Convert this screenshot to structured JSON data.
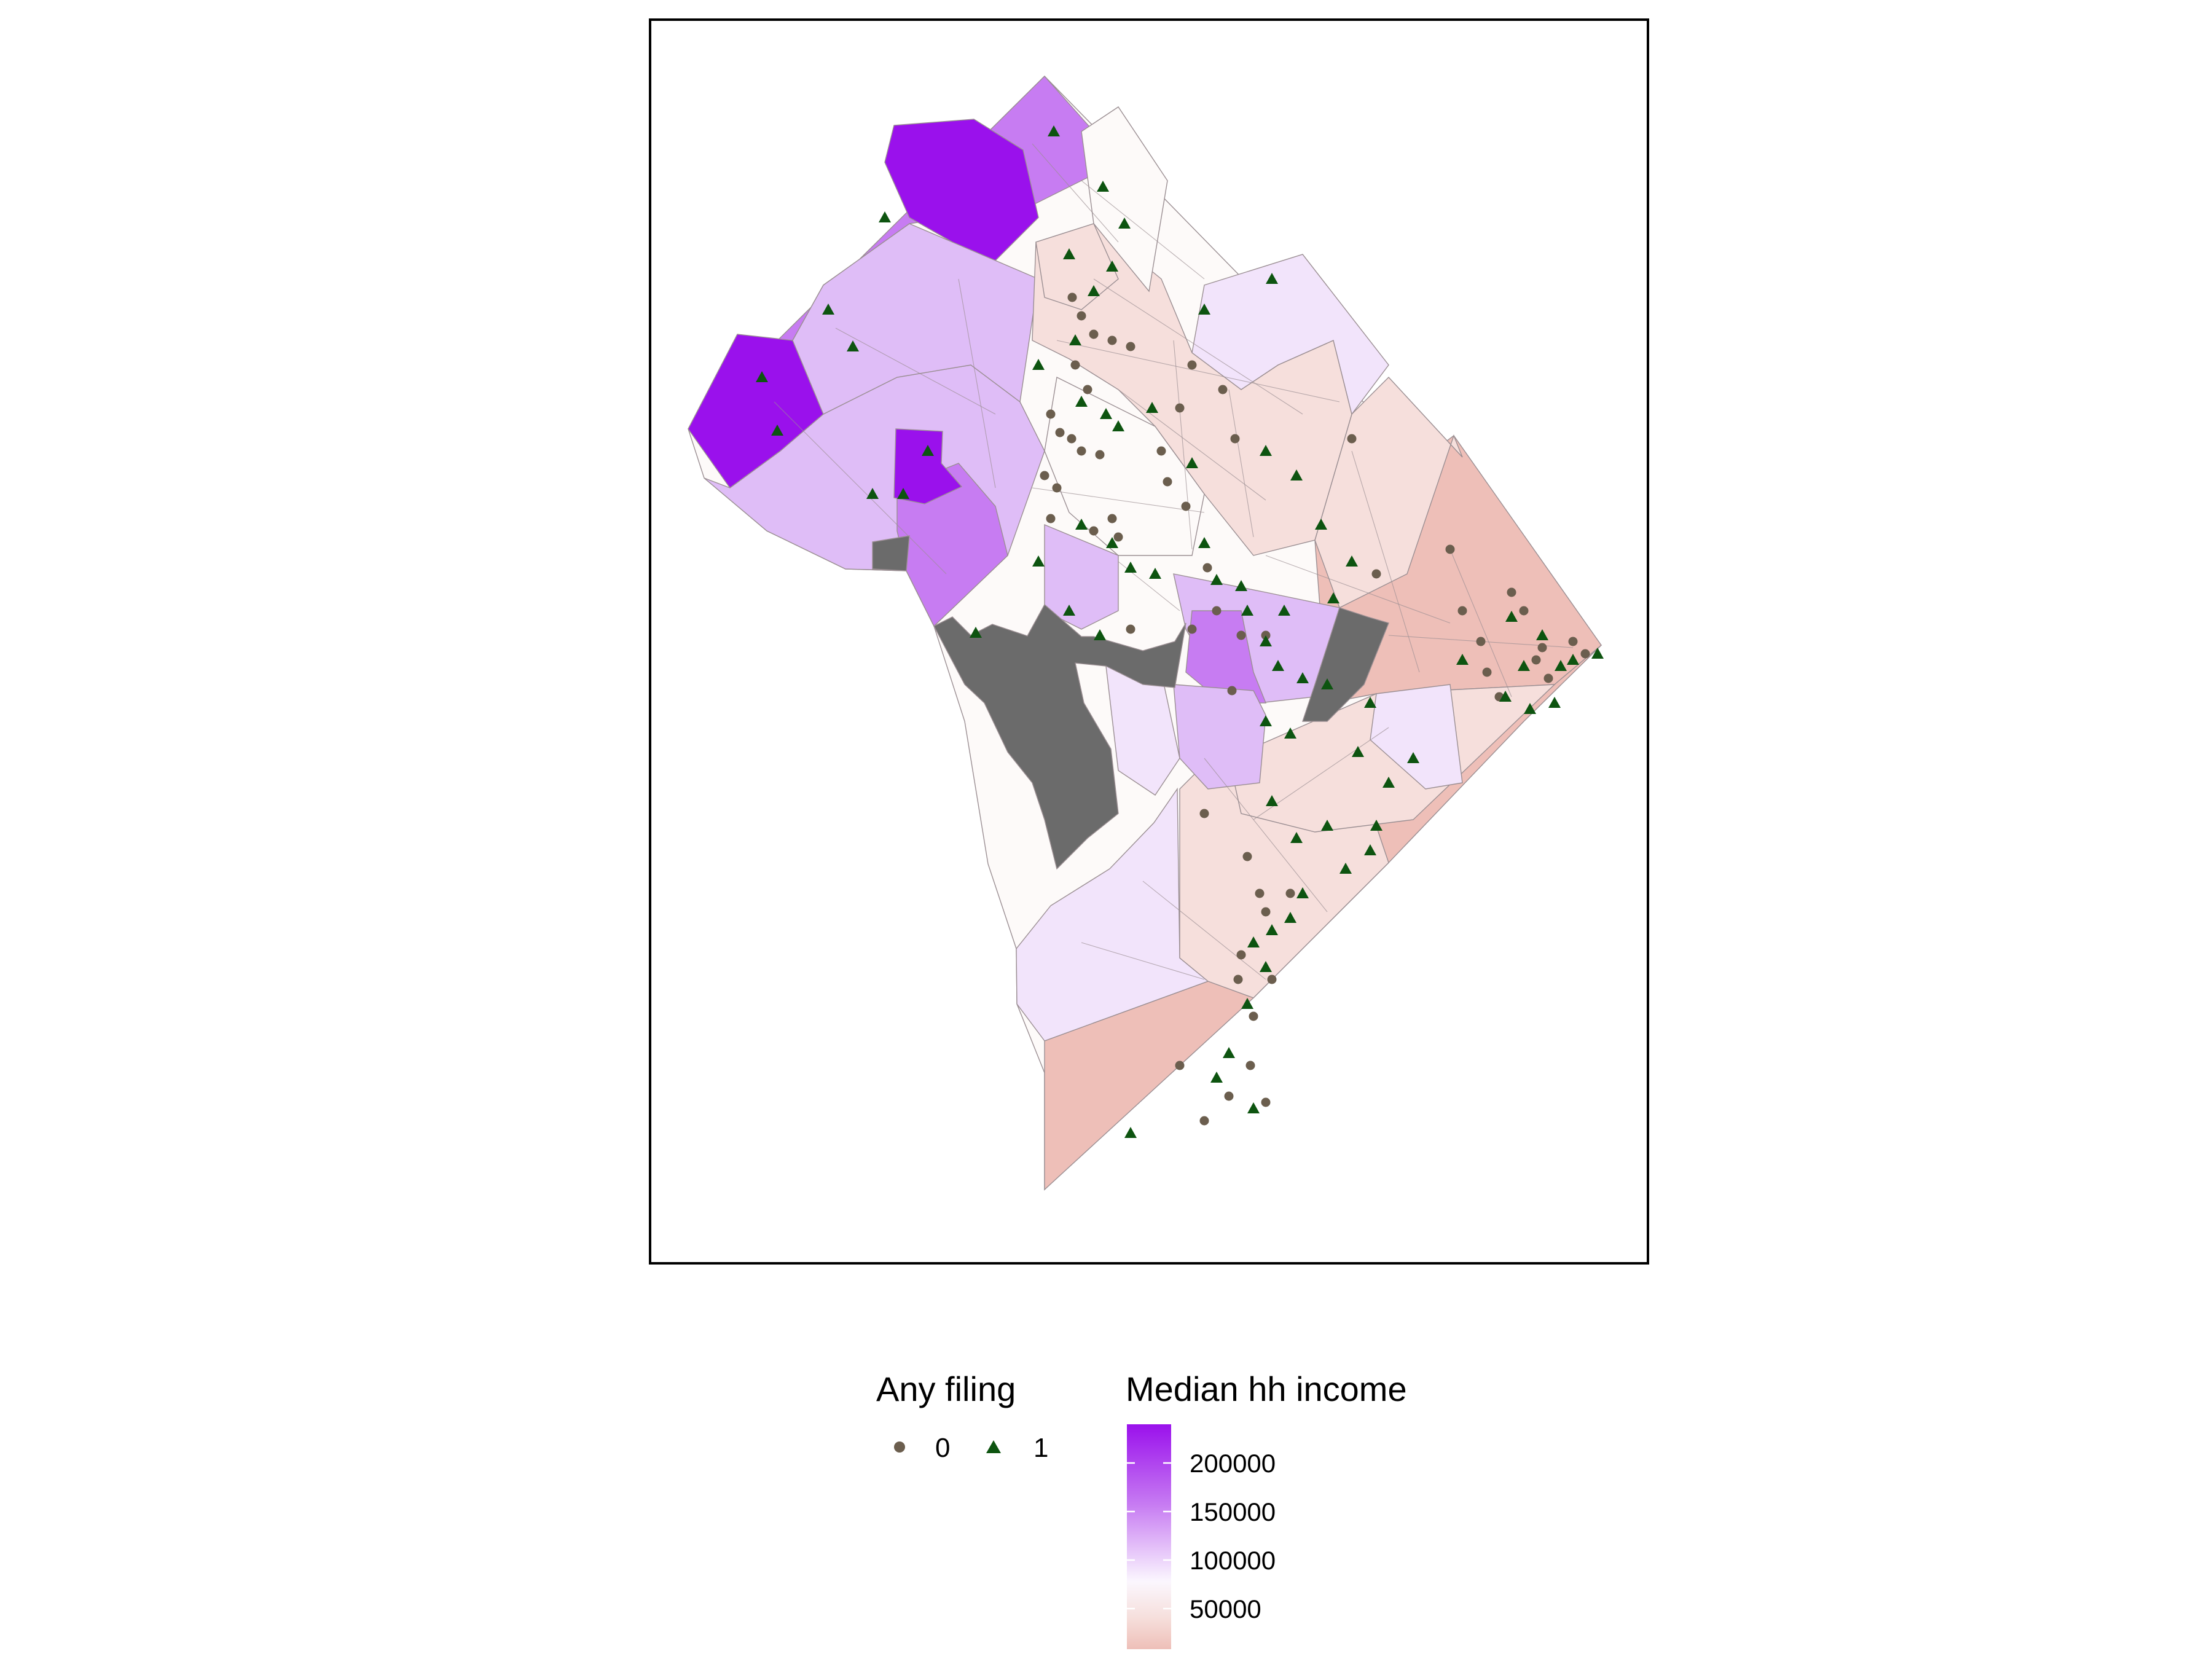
{
  "map": {
    "fill_colors": {
      "high": "#9a11ec",
      "mid_high": "#c77cf2",
      "mid": "#dfbdf7",
      "low_mid": "#f2e4fb",
      "white": "#fdfaf9",
      "low": "#f6dfdc",
      "lowest": "#eebfb8",
      "missing": "#6b6b6b",
      "border": "#9b8f93"
    }
  },
  "points": {
    "zero": {
      "color": "#6b5e4e",
      "shape": "circle"
    },
    "one": {
      "color": "#0d5410",
      "shape": "triangle"
    }
  },
  "legend_filing": {
    "title": "Any filing",
    "items": [
      {
        "label": "0",
        "shape": "circle",
        "color": "#6b5e4e"
      },
      {
        "label": "1",
        "shape": "triangle",
        "color": "#0d5410"
      }
    ]
  },
  "legend_income": {
    "title": "Median hh income",
    "ticks": [
      "200000",
      "150000",
      "100000",
      "50000"
    ],
    "colors": {
      "top": "#9a11ec",
      "upper": "#c77cf2",
      "middle": "#fbf7fe",
      "lower": "#f6dfdc",
      "bottom": "#eebfb8"
    }
  }
}
